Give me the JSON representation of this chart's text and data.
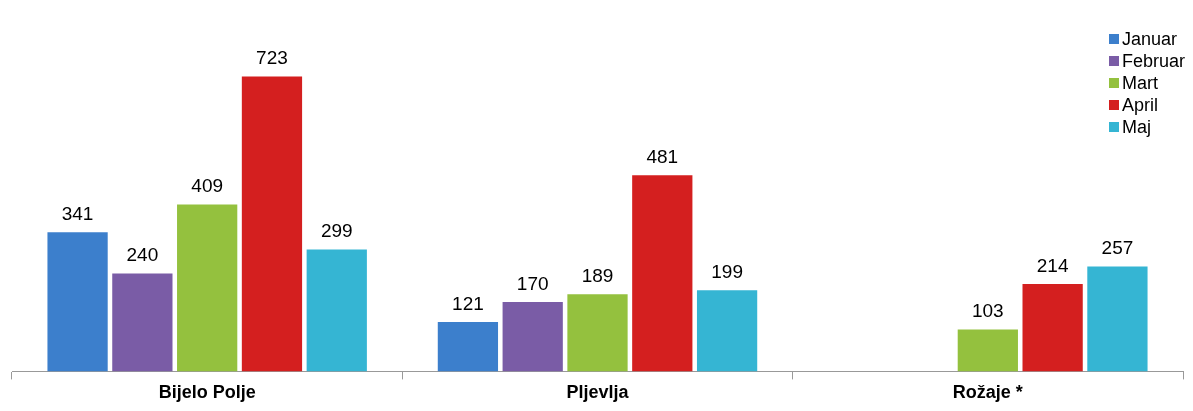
{
  "chart_data": {
    "type": "bar",
    "categories": [
      "Bijelo Polje",
      "Pljevlja",
      "Rožaje *"
    ],
    "series": [
      {
        "name": "Januar",
        "color": "#3c7fcc",
        "values": [
          341,
          121,
          null
        ]
      },
      {
        "name": "Februar",
        "color": "#7a5ca6",
        "values": [
          240,
          170,
          null
        ]
      },
      {
        "name": "Mart",
        "color": "#94c13e",
        "values": [
          409,
          189,
          103
        ]
      },
      {
        "name": "April",
        "color": "#d41f1f",
        "values": [
          723,
          481,
          214
        ]
      },
      {
        "name": "Maj",
        "color": "#35b5d3",
        "values": [
          299,
          199,
          257
        ]
      }
    ],
    "data_labels": true,
    "legend": "top right",
    "grid": false,
    "tick_labels": "x"
  }
}
